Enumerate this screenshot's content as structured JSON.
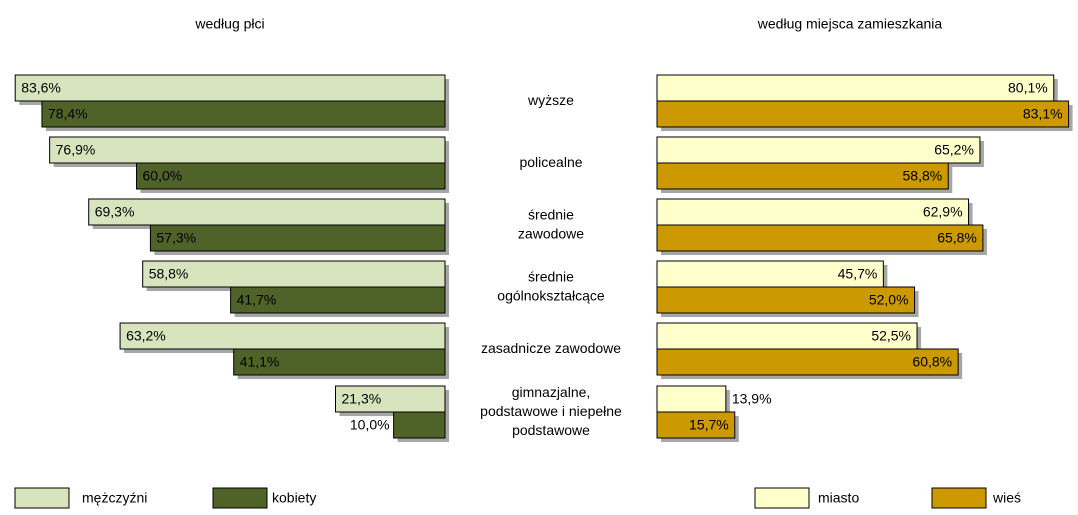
{
  "chart_data": [
    {
      "type": "bar",
      "orientation": "horizontal-left",
      "title": "według płci",
      "categories": [
        "wyższe",
        "policealne",
        "średnie\nzawodowe",
        "średnie\nogólnokształcące",
        "zasadnicze zawodowe",
        "gimnazjalne,\npodstawowe i niepełne\npodstawowe"
      ],
      "xlim": [
        0,
        85
      ],
      "series": [
        {
          "name": "mężczyźni",
          "color": "#d7e4bd",
          "values": [
            83.6,
            76.9,
            69.3,
            58.8,
            63.2,
            21.3
          ],
          "value_labels": [
            "83,6%",
            "76,9%",
            "69,3%",
            "58,8%",
            "63,2%",
            "21,3%"
          ]
        },
        {
          "name": "kobiety",
          "color": "#4f6228",
          "values": [
            78.4,
            60.0,
            57.3,
            41.7,
            41.1,
            10.0
          ],
          "value_labels": [
            "78,4%",
            "60,0%",
            "57,3%",
            "41,7%",
            "41,1%",
            "10,0%"
          ]
        }
      ]
    },
    {
      "type": "bar",
      "orientation": "horizontal-right",
      "title": "według miejsca zamieszkania",
      "xlim": [
        0,
        85
      ],
      "series": [
        {
          "name": "miasto",
          "color": "#ffffcc",
          "values": [
            80.1,
            65.2,
            62.9,
            45.7,
            52.5,
            13.9
          ],
          "value_labels": [
            "80,1%",
            "65,2%",
            "62,9%",
            "45,7%",
            "52,5%",
            "13,9%"
          ]
        },
        {
          "name": "wieś",
          "color": "#cc9900",
          "values": [
            83.1,
            58.8,
            65.8,
            52.0,
            60.8,
            15.7
          ],
          "value_labels": [
            "83,1%",
            "58,8%",
            "65,8%",
            "52,0%",
            "60,8%",
            "15,7%"
          ]
        }
      ]
    }
  ]
}
